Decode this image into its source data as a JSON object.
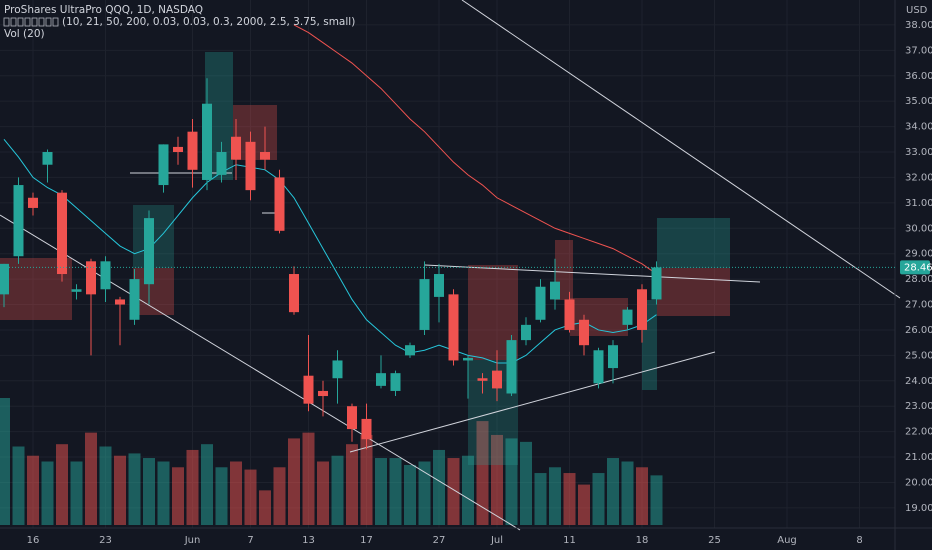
{
  "chart_data": {
    "type": "candlestick",
    "title": "ProShares UltraPro QQQ, 1D, NASDAQ",
    "subtitle": "(10, 21, 50, 200, 0.03, 0.03, 0.3, 2000, 2.5, 3.75, small)",
    "volume_label": "Vol (20)",
    "currency": "USD",
    "last_price": {
      "value": 28.46,
      "label": "28.46"
    },
    "up_color": "#26a69a",
    "down_color": "#ef5350",
    "open": [
      27.4,
      28.9,
      31.2,
      32.5,
      31.4,
      27.5,
      28.7,
      27.6,
      27.2,
      26.4,
      27.8,
      31.7,
      33.2,
      33.8,
      31.9,
      32.1,
      33.6,
      33.4,
      33.0,
      32.0,
      28.2,
      24.2,
      23.6,
      24.1,
      23.0,
      22.5,
      23.8,
      23.6,
      25.0,
      26.0,
      27.3,
      27.4,
      24.8,
      24.1,
      24.4,
      23.5,
      25.6,
      26.4,
      27.2,
      27.2,
      26.4,
      23.9,
      24.5,
      26.2,
      27.6,
      27.2
    ],
    "high": [
      28.6,
      32.0,
      31.4,
      33.1,
      31.5,
      27.8,
      28.8,
      28.9,
      27.3,
      28.4,
      30.7,
      33.3,
      33.6,
      34.3,
      35.9,
      33.4,
      34.3,
      33.8,
      34.0,
      32.3,
      28.5,
      25.8,
      24.0,
      25.2,
      23.1,
      23.1,
      25.0,
      24.4,
      25.5,
      28.7,
      28.6,
      27.6,
      25.0,
      24.3,
      25.2,
      25.8,
      26.5,
      28.0,
      28.8,
      27.5,
      26.6,
      25.3,
      25.6,
      26.9,
      27.8,
      28.7
    ],
    "low": [
      26.9,
      28.6,
      30.5,
      31.8,
      27.9,
      27.2,
      25.0,
      27.1,
      25.4,
      26.2,
      27.0,
      31.4,
      32.5,
      31.6,
      31.5,
      31.8,
      31.9,
      31.1,
      32.3,
      29.8,
      26.6,
      22.8,
      22.6,
      23.1,
      21.6,
      21.3,
      23.7,
      23.4,
      24.9,
      25.8,
      26.3,
      24.6,
      23.3,
      23.5,
      23.2,
      23.4,
      25.4,
      26.3,
      26.8,
      25.9,
      25.0,
      23.7,
      23.9,
      26.0,
      25.5,
      27.0
    ],
    "close": [
      28.6,
      31.7,
      30.8,
      33.0,
      28.2,
      27.6,
      27.4,
      28.7,
      27.0,
      28.0,
      30.4,
      33.3,
      33.0,
      32.3,
      34.9,
      33.0,
      32.7,
      31.5,
      32.7,
      29.9,
      26.7,
      23.1,
      23.4,
      24.8,
      22.1,
      21.7,
      24.3,
      24.3,
      25.4,
      28.0,
      28.2,
      24.8,
      24.9,
      24.0,
      23.7,
      25.6,
      26.2,
      27.7,
      27.9,
      26.0,
      25.4,
      25.2,
      25.4,
      26.8,
      26.0,
      28.46
    ],
    "volume": [
      110,
      68,
      60,
      55,
      70,
      55,
      80,
      68,
      60,
      62,
      58,
      55,
      50,
      65,
      70,
      50,
      55,
      48,
      30,
      50,
      75,
      80,
      55,
      60,
      70,
      78,
      58,
      58,
      52,
      55,
      65,
      58,
      60,
      90,
      78,
      75,
      72,
      45,
      50,
      45,
      35,
      45,
      58,
      55,
      50,
      43
    ],
    "lines": [
      {
        "color": "#ef5350",
        "values": [
          null,
          null,
          null,
          null,
          null,
          null,
          null,
          null,
          null,
          null,
          null,
          null,
          null,
          null,
          null,
          null,
          null,
          null,
          null,
          null,
          38.0,
          37.7,
          37.3,
          36.9,
          36.5,
          36.0,
          35.5,
          34.9,
          34.3,
          33.8,
          33.2,
          32.6,
          32.1,
          31.7,
          31.2,
          30.9,
          30.6,
          30.3,
          30.0,
          29.8,
          29.6,
          29.4,
          29.2,
          28.9,
          28.6,
          28.2
        ]
      },
      {
        "color": "#26c6da",
        "values": [
          33.5,
          32.8,
          32.0,
          31.6,
          31.3,
          30.8,
          30.3,
          29.8,
          29.3,
          29.0,
          29.2,
          29.8,
          30.5,
          31.2,
          31.8,
          32.2,
          32.5,
          32.4,
          32.3,
          31.9,
          31.2,
          30.2,
          29.2,
          28.2,
          27.2,
          26.4,
          25.9,
          25.4,
          25.1,
          25.2,
          25.4,
          25.2,
          25.0,
          24.9,
          24.7,
          24.7,
          25.0,
          25.5,
          26.0,
          26.2,
          26.3,
          26.0,
          25.9,
          26.0,
          26.2,
          26.6
        ]
      }
    ],
    "ylim": [
      18.13,
      38.98
    ],
    "yticks": [
      {
        "value": 19,
        "label": "19.00"
      },
      {
        "value": 20,
        "label": "20.00"
      },
      {
        "value": 21,
        "label": "21.00"
      },
      {
        "value": 22,
        "label": "22.00"
      },
      {
        "value": 23,
        "label": "23.00"
      },
      {
        "value": 24,
        "label": "24.00"
      },
      {
        "value": 25,
        "label": "25.00"
      },
      {
        "value": 26,
        "label": "26.00"
      },
      {
        "value": 27,
        "label": "27.00"
      },
      {
        "value": 28,
        "label": "28.00"
      },
      {
        "value": 29,
        "label": "29.00"
      },
      {
        "value": 30,
        "label": "30.00"
      },
      {
        "value": 31,
        "label": "31.00"
      },
      {
        "value": 32,
        "label": "32.00"
      },
      {
        "value": 33,
        "label": "33.00"
      },
      {
        "value": 34,
        "label": "34.00"
      },
      {
        "value": 35,
        "label": "35.00"
      },
      {
        "value": 36,
        "label": "36.00"
      },
      {
        "value": 37,
        "label": "37.00"
      },
      {
        "value": 38,
        "label": "38.00"
      }
    ],
    "xticks": [
      {
        "value": 2,
        "label": "16"
      },
      {
        "value": 7,
        "label": "23"
      },
      {
        "value": 13,
        "label": "Jun"
      },
      {
        "value": 17,
        "label": "7"
      },
      {
        "value": 21,
        "label": "13"
      },
      {
        "value": 25,
        "label": "17"
      },
      {
        "value": 30,
        "label": "27"
      },
      {
        "value": 34,
        "label": "Jul"
      },
      {
        "value": 39,
        "label": "11"
      },
      {
        "value": 44,
        "label": "18"
      },
      {
        "value": 49,
        "label": "25"
      },
      {
        "value": 54,
        "label": "Aug"
      },
      {
        "value": 59,
        "label": "8"
      }
    ],
    "grid": true
  }
}
